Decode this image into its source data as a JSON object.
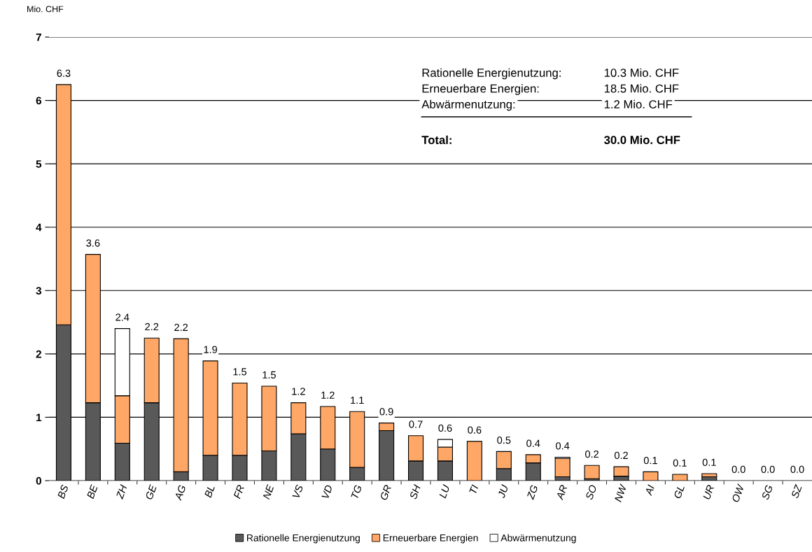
{
  "chart_data": {
    "type": "bar",
    "stacked": true,
    "ylabel": "Mio. CHF",
    "categories": [
      "BS",
      "BE",
      "ZH",
      "GE",
      "AG",
      "BL",
      "FR",
      "NE",
      "VS",
      "VD",
      "TG",
      "GR",
      "SH",
      "LU",
      "TI",
      "JU",
      "ZG",
      "AR",
      "SO",
      "NW",
      "AI",
      "GL",
      "UR",
      "OW",
      "SG",
      "SZ"
    ],
    "series": [
      {
        "name": "Rationelle Energienutzung",
        "color": "#595959",
        "values": [
          2.46,
          1.23,
          0.59,
          1.23,
          0.14,
          0.4,
          0.4,
          0.47,
          0.74,
          0.5,
          0.21,
          0.79,
          0.31,
          0.31,
          0,
          0.19,
          0.28,
          0.06,
          0.03,
          0.07,
          null,
          null,
          0.06,
          0,
          0,
          0
        ]
      },
      {
        "name": "Erneuerbare Energien",
        "color": "#ffa766",
        "values": [
          3.79,
          2.34,
          0.75,
          1.02,
          2.1,
          1.49,
          1.14,
          1.02,
          0.49,
          0.67,
          0.88,
          0.12,
          0.4,
          0.22,
          0.62,
          0.27,
          0.13,
          0.29,
          0.21,
          0.15,
          0.14,
          0.1,
          0.05,
          0,
          0,
          0
        ]
      },
      {
        "name": "Abwärmenutzung",
        "color": "#ffffff",
        "values": [
          0,
          0,
          1.06,
          0,
          0,
          0,
          0,
          0,
          0,
          0,
          0,
          0,
          0,
          0.12,
          0,
          0,
          0,
          0.02,
          0,
          0,
          0,
          0,
          0,
          0,
          0,
          0
        ]
      }
    ],
    "totals": [
      "6.3",
      "3.6",
      "2.4",
      "2.2",
      "2.2",
      "1.9",
      "1.5",
      "1.5",
      "1.2",
      "1.2",
      "1.1",
      "0.9",
      "0.7",
      "0.6",
      "0.6",
      "0.5",
      "0.4",
      "0.4",
      "0.2",
      "0.2",
      "0.1",
      "0.1",
      "0.1",
      "0.0",
      "0.0",
      "0.0"
    ],
    "ylim": [
      0,
      7
    ],
    "yticks": [
      0,
      1,
      2,
      3,
      4,
      5,
      6,
      7
    ],
    "grid": "y",
    "legend": "bottom",
    "annotations": [
      "Rationelle Energienutzung:",
      "10.3 Mio. CHF",
      "Erneuerbare Energien:",
      "18.5 Mio. CHF",
      "Abwärmenutzung:",
      "1.2 Mio. CHF",
      "Total:",
      "30.0 Mio. CHF"
    ]
  }
}
